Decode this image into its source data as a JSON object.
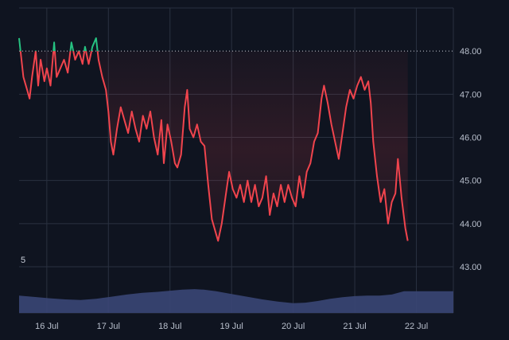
{
  "chart_data": {
    "type": "area",
    "baseline": 48.0,
    "colors": {
      "above": "#26c281",
      "below": "#f0444d",
      "volume": "#3a4675",
      "grid": "#2a3140",
      "background": "#0f1420",
      "text": "#b8bfcc"
    },
    "ylim": [
      43,
      49
    ],
    "y_ticks": [
      "48.00",
      "47.00",
      "46.00",
      "45.00",
      "44.00",
      "43.00"
    ],
    "y_tick_values": [
      48,
      47,
      46,
      45,
      44,
      43
    ],
    "x_ticks": [
      "16 Jul",
      "17 Jul",
      "18 Jul",
      "19 Jul",
      "20 Jul",
      "21 Jul",
      "22 Jul"
    ],
    "x_tick_values": [
      1,
      2,
      3,
      4,
      5,
      6,
      7
    ],
    "xlim": [
      0.55,
      7.6
    ],
    "volume_label": "5",
    "volume_max": 5,
    "series": [
      {
        "values": [
          [
            0.55,
            48.3
          ],
          [
            0.62,
            47.4
          ],
          [
            0.68,
            47.1
          ],
          [
            0.72,
            46.9
          ],
          [
            0.76,
            47.4
          ],
          [
            0.82,
            48.0
          ],
          [
            0.86,
            47.2
          ],
          [
            0.9,
            47.8
          ],
          [
            0.96,
            47.3
          ],
          [
            1.0,
            47.6
          ],
          [
            1.06,
            47.2
          ],
          [
            1.12,
            48.2
          ],
          [
            1.16,
            47.4
          ],
          [
            1.22,
            47.6
          ],
          [
            1.28,
            47.8
          ],
          [
            1.34,
            47.5
          ],
          [
            1.4,
            48.2
          ],
          [
            1.46,
            47.8
          ],
          [
            1.52,
            48.0
          ],
          [
            1.58,
            47.7
          ],
          [
            1.62,
            48.1
          ],
          [
            1.68,
            47.7
          ],
          [
            1.74,
            48.1
          ],
          [
            1.8,
            48.3
          ],
          [
            1.84,
            47.8
          ],
          [
            1.9,
            47.4
          ],
          [
            1.96,
            47.1
          ],
          [
            2.0,
            46.6
          ],
          [
            2.04,
            45.9
          ],
          [
            2.08,
            45.6
          ],
          [
            2.14,
            46.2
          ],
          [
            2.2,
            46.7
          ],
          [
            2.26,
            46.4
          ],
          [
            2.32,
            46.1
          ],
          [
            2.38,
            46.6
          ],
          [
            2.44,
            46.2
          ],
          [
            2.5,
            45.9
          ],
          [
            2.56,
            46.5
          ],
          [
            2.62,
            46.2
          ],
          [
            2.68,
            46.6
          ],
          [
            2.74,
            46.0
          ],
          [
            2.8,
            45.6
          ],
          [
            2.86,
            46.4
          ],
          [
            2.9,
            45.4
          ],
          [
            2.96,
            46.3
          ],
          [
            3.02,
            45.9
          ],
          [
            3.08,
            45.4
          ],
          [
            3.12,
            45.3
          ],
          [
            3.18,
            45.6
          ],
          [
            3.24,
            46.7
          ],
          [
            3.28,
            47.1
          ],
          [
            3.32,
            46.2
          ],
          [
            3.38,
            46.0
          ],
          [
            3.44,
            46.3
          ],
          [
            3.5,
            45.9
          ],
          [
            3.56,
            45.8
          ],
          [
            3.62,
            44.9
          ],
          [
            3.68,
            44.1
          ],
          [
            3.74,
            43.8
          ],
          [
            3.78,
            43.6
          ],
          [
            3.84,
            44.0
          ],
          [
            3.9,
            44.6
          ],
          [
            3.96,
            45.2
          ],
          [
            4.02,
            44.8
          ],
          [
            4.08,
            44.6
          ],
          [
            4.14,
            44.9
          ],
          [
            4.2,
            44.5
          ],
          [
            4.26,
            45.0
          ],
          [
            4.32,
            44.5
          ],
          [
            4.38,
            44.9
          ],
          [
            4.44,
            44.4
          ],
          [
            4.5,
            44.6
          ],
          [
            4.56,
            45.1
          ],
          [
            4.62,
            44.2
          ],
          [
            4.68,
            44.7
          ],
          [
            4.74,
            44.4
          ],
          [
            4.8,
            44.9
          ],
          [
            4.86,
            44.5
          ],
          [
            4.92,
            44.9
          ],
          [
            4.98,
            44.6
          ],
          [
            5.04,
            44.4
          ],
          [
            5.1,
            45.1
          ],
          [
            5.16,
            44.6
          ],
          [
            5.22,
            45.2
          ],
          [
            5.28,
            45.4
          ],
          [
            5.34,
            45.9
          ],
          [
            5.4,
            46.1
          ],
          [
            5.46,
            46.9
          ],
          [
            5.5,
            47.2
          ],
          [
            5.56,
            46.8
          ],
          [
            5.62,
            46.3
          ],
          [
            5.68,
            45.9
          ],
          [
            5.74,
            45.5
          ],
          [
            5.8,
            46.1
          ],
          [
            5.86,
            46.7
          ],
          [
            5.92,
            47.1
          ],
          [
            5.98,
            46.9
          ],
          [
            6.04,
            47.2
          ],
          [
            6.1,
            47.4
          ],
          [
            6.16,
            47.1
          ],
          [
            6.22,
            47.3
          ],
          [
            6.26,
            46.8
          ],
          [
            6.3,
            45.9
          ],
          [
            6.36,
            45.1
          ],
          [
            6.42,
            44.5
          ],
          [
            6.48,
            44.8
          ],
          [
            6.54,
            44.0
          ],
          [
            6.6,
            44.5
          ],
          [
            6.66,
            44.7
          ],
          [
            6.7,
            45.5
          ],
          [
            6.76,
            44.6
          ],
          [
            6.82,
            43.9
          ],
          [
            6.86,
            43.6
          ]
        ]
      }
    ],
    "volume": [
      [
        0.55,
        1.6
      ],
      [
        0.85,
        1.45
      ],
      [
        1.05,
        1.35
      ],
      [
        1.3,
        1.25
      ],
      [
        1.55,
        1.2
      ],
      [
        1.8,
        1.3
      ],
      [
        2.05,
        1.5
      ],
      [
        2.3,
        1.7
      ],
      [
        2.55,
        1.85
      ],
      [
        2.8,
        1.95
      ],
      [
        3.0,
        2.05
      ],
      [
        3.2,
        2.15
      ],
      [
        3.4,
        2.2
      ],
      [
        3.55,
        2.15
      ],
      [
        3.75,
        2.0
      ],
      [
        4.0,
        1.75
      ],
      [
        4.25,
        1.5
      ],
      [
        4.5,
        1.25
      ],
      [
        4.75,
        1.05
      ],
      [
        5.0,
        0.9
      ],
      [
        5.2,
        0.95
      ],
      [
        5.4,
        1.1
      ],
      [
        5.6,
        1.3
      ],
      [
        5.8,
        1.45
      ],
      [
        6.0,
        1.55
      ],
      [
        6.2,
        1.6
      ],
      [
        6.4,
        1.6
      ],
      [
        6.6,
        1.7
      ],
      [
        6.8,
        2.0
      ]
    ]
  }
}
